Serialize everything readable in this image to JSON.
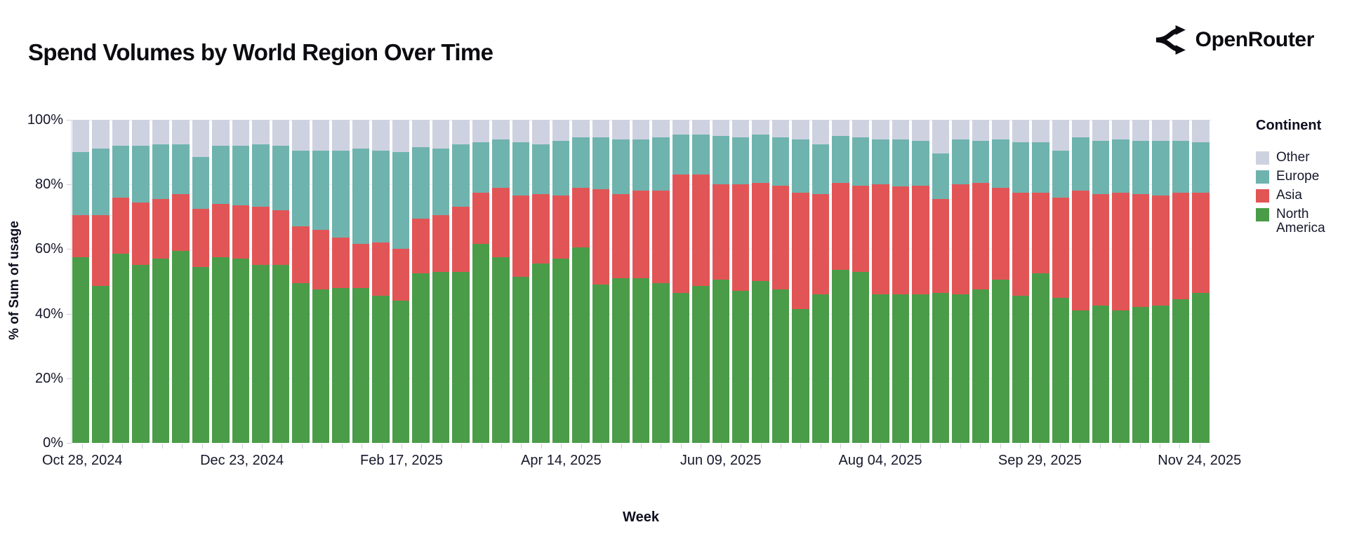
{
  "header": {
    "title": "Spend Volumes by World Region Over Time",
    "brand": "OpenRouter"
  },
  "axes": {
    "y_label": "% of Sum of usage",
    "x_label": "Week",
    "y_ticks": [
      "0%",
      "20%",
      "40%",
      "60%",
      "80%",
      "100%"
    ],
    "x_ticks_shown": [
      "Oct 28, 2024",
      "Dec 23, 2024",
      "Feb 17, 2025",
      "Apr 14, 2025",
      "Jun 09, 2025",
      "Aug 04, 2025",
      "Sep 29, 2025",
      "Nov 24, 2025"
    ]
  },
  "legend": {
    "title": "Continent",
    "items": [
      {
        "label": "Other",
        "color": "#ced2e0"
      },
      {
        "label": "Europe",
        "color": "#6fb3ae"
      },
      {
        "label": "Asia",
        "color": "#e25556"
      },
      {
        "label": "North America",
        "color": "#4a9c49"
      }
    ]
  },
  "chart_data": {
    "type": "bar",
    "stacked": true,
    "normalized_percent": true,
    "title": "Spend Volumes by World Region Over Time",
    "xlabel": "Week",
    "ylabel": "% of Sum of usage",
    "ylim": [
      0,
      100
    ],
    "grid": true,
    "legend_position": "right",
    "x_label_every": 8,
    "x": [
      "Oct 28, 2024",
      "Nov 04, 2024",
      "Nov 11, 2024",
      "Nov 18, 2024",
      "Nov 25, 2024",
      "Dec 02, 2024",
      "Dec 09, 2024",
      "Dec 16, 2024",
      "Dec 23, 2024",
      "Dec 30, 2024",
      "Jan 06, 2025",
      "Jan 13, 2025",
      "Jan 20, 2025",
      "Jan 27, 2025",
      "Feb 03, 2025",
      "Feb 10, 2025",
      "Feb 17, 2025",
      "Feb 24, 2025",
      "Mar 03, 2025",
      "Mar 10, 2025",
      "Mar 17, 2025",
      "Mar 24, 2025",
      "Mar 31, 2025",
      "Apr 07, 2025",
      "Apr 14, 2025",
      "Apr 21, 2025",
      "Apr 28, 2025",
      "May 05, 2025",
      "May 12, 2025",
      "May 19, 2025",
      "May 26, 2025",
      "Jun 02, 2025",
      "Jun 09, 2025",
      "Jun 16, 2025",
      "Jun 23, 2025",
      "Jun 30, 2025",
      "Jul 07, 2025",
      "Jul 14, 2025",
      "Jul 21, 2025",
      "Jul 28, 2025",
      "Aug 04, 2025",
      "Aug 11, 2025",
      "Aug 18, 2025",
      "Aug 25, 2025",
      "Sep 01, 2025",
      "Sep 08, 2025",
      "Sep 15, 2025",
      "Sep 22, 2025",
      "Sep 29, 2025",
      "Oct 06, 2025",
      "Oct 13, 2025",
      "Oct 20, 2025",
      "Oct 27, 2025",
      "Nov 03, 2025",
      "Nov 10, 2025",
      "Nov 17, 2025",
      "Nov 24, 2025"
    ],
    "series": [
      {
        "name": "North America",
        "color": "#4a9c49",
        "values": [
          57.5,
          48.5,
          58.5,
          55,
          57,
          59.5,
          54.5,
          57.5,
          57,
          55,
          55,
          49.5,
          47.5,
          48,
          48,
          45.5,
          44,
          52.5,
          53,
          53,
          61.5,
          57.5,
          51.5,
          55.5,
          57,
          60.5,
          49,
          51,
          51,
          49.5,
          46.5,
          48.5,
          50.5,
          47,
          50,
          47.5,
          41.5,
          46,
          53.5,
          53,
          46,
          46,
          46,
          46.5,
          46,
          47.5,
          50.5,
          45.5,
          52.5,
          45,
          41,
          42.5,
          41,
          42,
          42.5,
          44.5,
          46.5
        ]
      },
      {
        "name": "Asia",
        "color": "#e25556",
        "values": [
          13,
          22,
          17.5,
          19.5,
          18.5,
          17.5,
          18,
          16.5,
          16.5,
          18,
          17,
          17.5,
          18.5,
          15.5,
          13.5,
          16.5,
          16,
          17,
          17.5,
          20,
          16,
          21.5,
          25,
          21.5,
          19.5,
          18.5,
          29.5,
          26,
          27,
          28.5,
          36.5,
          34.5,
          29.5,
          33,
          30.5,
          32,
          36,
          31,
          27,
          26.5,
          34,
          33.5,
          33.5,
          29,
          34,
          33,
          28.5,
          32,
          25,
          31,
          37,
          34.5,
          36.5,
          35,
          34,
          33,
          31
        ]
      },
      {
        "name": "Europe",
        "color": "#6fb3ae",
        "values": [
          19.5,
          20.5,
          16,
          17.5,
          17,
          15.5,
          16,
          18,
          18.5,
          19.5,
          20,
          23.5,
          24.5,
          27,
          29.5,
          28.5,
          30,
          22,
          20.5,
          19.5,
          15.5,
          15,
          16.5,
          15.5,
          17,
          15.5,
          16,
          17,
          16,
          16.5,
          12.5,
          12.5,
          15,
          14.5,
          15,
          15,
          16.5,
          15.5,
          14.5,
          15,
          14,
          14.5,
          14,
          14,
          14,
          13,
          15,
          15.5,
          15.5,
          14.5,
          16.5,
          16.5,
          16.5,
          16.5,
          17,
          16,
          15.5
        ]
      },
      {
        "name": "Other",
        "color": "#ced2e0",
        "values": [
          10,
          9,
          8,
          8,
          7.5,
          7.5,
          11.5,
          8,
          8,
          7.5,
          8,
          9.5,
          9.5,
          9.5,
          9,
          9.5,
          10,
          8.5,
          9,
          7.5,
          7,
          6,
          7,
          7.5,
          6.5,
          5.5,
          5.5,
          6,
          6,
          5.5,
          4.5,
          4.5,
          5,
          5.5,
          4.5,
          5.5,
          6,
          7.5,
          5,
          5.5,
          6,
          6,
          6.5,
          10.5,
          6,
          6.5,
          6,
          7,
          7,
          9.5,
          5.5,
          6.5,
          6,
          6.5,
          6.5,
          6.5,
          7
        ]
      }
    ]
  }
}
